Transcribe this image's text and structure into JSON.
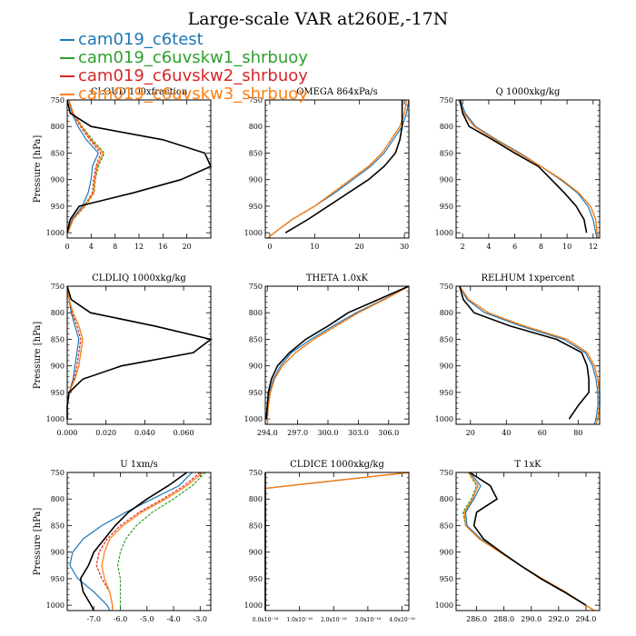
{
  "title": "Large-scale VAR at260E,-17N",
  "legend": [
    {
      "label": "cam019_c6test",
      "color": "#1f77b4"
    },
    {
      "label": "cam019_c6uvskw1_shrbuoy",
      "color": "#2ca02c"
    },
    {
      "label": "cam019_c6uvskw2_shrbuoy",
      "color": "#d62728"
    },
    {
      "label": "cam019_c6uvskw3_shrbuoy",
      "color": "#ff7f0e"
    }
  ],
  "colors": {
    "c6test": "#1f77b4",
    "skw1": "#2ca02c",
    "skw2": "#d62728",
    "skw3": "#ff7f0e",
    "reference": "#000000"
  },
  "chart_data": [
    {
      "type": "line",
      "title": "CLOUD 100xfraction",
      "ylabel": "Pressure [hPa]",
      "ylim": [
        1010,
        750
      ],
      "xlim": [
        0,
        24
      ],
      "xticks": [
        "0",
        "4",
        "8",
        "12",
        "16",
        "20"
      ],
      "xtick_values": [
        0,
        4,
        8,
        12,
        16,
        20
      ],
      "yticks": [
        750,
        800,
        850,
        900,
        950,
        1000
      ],
      "y": [
        750,
        775,
        800,
        825,
        850,
        875,
        900,
        925,
        950,
        975,
        1000
      ],
      "series": [
        {
          "color": "#1f77b4",
          "values": [
            0.3,
            0.8,
            1.8,
            3.2,
            5.2,
            4.2,
            4.0,
            3.5,
            2.5,
            0.8,
            0.1
          ]
        },
        {
          "color": "#2ca02c",
          "values": [
            0.3,
            1.0,
            2.5,
            4.2,
            6.2,
            5.2,
            4.7,
            4.5,
            3.0,
            1.0,
            0.1
          ]
        },
        {
          "color": "#d62728",
          "values": [
            0.3,
            0.9,
            2.2,
            3.8,
            5.6,
            4.8,
            4.4,
            4.2,
            2.8,
            0.9,
            0.1
          ]
        },
        {
          "color": "#ff7f0e",
          "values": [
            0.3,
            1.0,
            2.4,
            4.0,
            6.0,
            5.0,
            4.6,
            4.4,
            2.9,
            1.0,
            0.1
          ]
        },
        {
          "color": "#000000",
          "values": [
            0,
            0.5,
            4.0,
            16.0,
            23.0,
            24.0,
            19.0,
            11.0,
            2.0,
            0.5,
            0
          ]
        }
      ]
    },
    {
      "type": "line",
      "title": "OMEGA 864xPa/s",
      "ylabel": "",
      "ylim": [
        1010,
        750
      ],
      "xlim": [
        -1,
        31
      ],
      "xticks": [
        "0",
        "10",
        "20",
        "30"
      ],
      "xtick_values": [
        0,
        10,
        20,
        30
      ],
      "yticks": [
        750,
        800,
        850,
        900,
        950,
        1000
      ],
      "y": [
        750,
        775,
        800,
        825,
        850,
        875,
        900,
        925,
        950,
        975,
        1000,
        1010
      ],
      "series": [
        {
          "color": "#1f77b4",
          "values": [
            31,
            30.5,
            29.5,
            27.5,
            25.5,
            22.5,
            18.5,
            14.5,
            10,
            5,
            1,
            -0.5
          ]
        },
        {
          "color": "#2ca02c",
          "values": [
            30.5,
            30,
            29,
            27,
            25,
            22,
            18,
            14,
            10,
            5,
            1,
            -0.5
          ]
        },
        {
          "color": "#d62728",
          "values": [
            30.5,
            30,
            29,
            27,
            25,
            22,
            18,
            14,
            10,
            5,
            1,
            -0.5
          ]
        },
        {
          "color": "#ff7f0e",
          "values": [
            30.5,
            30,
            29,
            27,
            25,
            22,
            18,
            14,
            10,
            5,
            1,
            -0.5
          ]
        },
        {
          "color": "#000000",
          "values": [
            29.5,
            29.5,
            29.5,
            29,
            28,
            25.5,
            22,
            17.5,
            13,
            8.5,
            3.5
          ]
        }
      ]
    },
    {
      "type": "line",
      "title": "Q 1000xkg/kg",
      "ylabel": "",
      "ylim": [
        1010,
        750
      ],
      "xlim": [
        1.5,
        12.5
      ],
      "xticks": [
        "2",
        "4",
        "6",
        "8",
        "10",
        "12"
      ],
      "xtick_values": [
        2,
        4,
        6,
        8,
        10,
        12
      ],
      "yticks": [
        750,
        800,
        850,
        900,
        950,
        1000
      ],
      "y": [
        750,
        775,
        800,
        825,
        850,
        875,
        900,
        925,
        950,
        975,
        1000,
        1010
      ],
      "series": [
        {
          "color": "#1f77b4",
          "values": [
            1.8,
            2.2,
            3.0,
            4.6,
            6.4,
            8.0,
            9.5,
            10.8,
            11.6,
            12.0,
            12.2,
            12.3
          ]
        },
        {
          "color": "#2ca02c",
          "values": [
            1.7,
            2.1,
            2.9,
            4.5,
            6.3,
            8.0,
            9.6,
            10.9,
            11.8,
            12.2,
            12.3,
            12.4
          ]
        },
        {
          "color": "#d62728",
          "values": [
            1.7,
            2.1,
            2.9,
            4.5,
            6.3,
            8.0,
            9.6,
            10.9,
            11.8,
            12.2,
            12.3,
            12.4
          ]
        },
        {
          "color": "#ff7f0e",
          "values": [
            1.7,
            2.1,
            2.9,
            4.5,
            6.3,
            8.0,
            9.6,
            10.9,
            11.8,
            12.2,
            12.3,
            12.4
          ]
        },
        {
          "color": "#000000",
          "values": [
            1.8,
            2.0,
            2.5,
            4.3,
            6.0,
            7.8,
            8.8,
            9.8,
            10.7,
            11.3,
            11.5
          ]
        }
      ]
    },
    {
      "type": "line",
      "title": "CLDLIQ 1000xkg/kg",
      "ylabel": "Pressure [hPa]",
      "ylim": [
        1010,
        750
      ],
      "xlim": [
        0,
        0.074
      ],
      "xticks": [
        "0.000",
        "0.020",
        "0.040",
        "0.060"
      ],
      "xtick_values": [
        0,
        0.02,
        0.04,
        0.06
      ],
      "yticks": [
        750,
        800,
        850,
        900,
        950,
        1000
      ],
      "y": [
        750,
        775,
        800,
        825,
        850,
        875,
        900,
        925,
        950,
        975,
        1000
      ],
      "series": [
        {
          "color": "#1f77b4",
          "values": [
            0,
            0.001,
            0.002,
            0.004,
            0.006,
            0.005,
            0.004,
            0.003,
            0.001,
            0,
            0
          ]
        },
        {
          "color": "#2ca02c",
          "values": [
            0,
            0.001,
            0.003,
            0.006,
            0.008,
            0.007,
            0.006,
            0.004,
            0.001,
            0,
            0
          ]
        },
        {
          "color": "#d62728",
          "values": [
            0,
            0.001,
            0.0025,
            0.005,
            0.007,
            0.006,
            0.005,
            0.0035,
            0.001,
            0,
            0
          ]
        },
        {
          "color": "#ff7f0e",
          "values": [
            0,
            0.001,
            0.003,
            0.006,
            0.008,
            0.007,
            0.006,
            0.004,
            0.001,
            0,
            0
          ]
        },
        {
          "color": "#000000",
          "values": [
            0,
            0.002,
            0.012,
            0.045,
            0.074,
            0.065,
            0.028,
            0.008,
            0.001,
            0,
            0
          ]
        }
      ]
    },
    {
      "type": "line",
      "title": "THETA 1.0xK",
      "ylabel": "",
      "ylim": [
        1010,
        750
      ],
      "xlim": [
        293.8,
        308
      ],
      "xticks": [
        "294.0",
        "297.0",
        "300.0",
        "303.0",
        "306.0"
      ],
      "xtick_values": [
        294,
        297,
        300,
        303,
        306
      ],
      "yticks": [
        750,
        800,
        850,
        900,
        950,
        1000
      ],
      "y": [
        750,
        775,
        800,
        825,
        850,
        875,
        900,
        925,
        950,
        975,
        1000,
        1010
      ],
      "series": [
        {
          "color": "#1f77b4",
          "values": [
            308.0,
            305.5,
            302.8,
            300.5,
            298.3,
            296.4,
            295.3,
            294.6,
            294.2,
            294.1,
            294.0,
            294.0
          ]
        },
        {
          "color": "#2ca02c",
          "values": [
            308.0,
            305.6,
            303.0,
            300.8,
            298.6,
            296.8,
            295.5,
            294.7,
            294.3,
            294.1,
            294.0,
            294.0
          ]
        },
        {
          "color": "#d62728",
          "values": [
            308.0,
            305.6,
            303.0,
            300.8,
            298.6,
            296.8,
            295.5,
            294.7,
            294.3,
            294.1,
            294.0,
            294.0
          ]
        },
        {
          "color": "#ff7f0e",
          "values": [
            308.0,
            305.6,
            303.0,
            300.8,
            298.6,
            296.8,
            295.5,
            294.7,
            294.3,
            294.1,
            294.0,
            294.0
          ]
        },
        {
          "color": "#000000",
          "values": [
            308.0,
            305.0,
            302.0,
            300.0,
            297.8,
            296.2,
            295.0,
            294.4,
            294.1,
            294.0,
            293.9
          ]
        }
      ]
    },
    {
      "type": "line",
      "title": "RELHUM 1xpercent",
      "ylabel": "",
      "ylim": [
        1010,
        750
      ],
      "xlim": [
        12,
        92
      ],
      "xticks": [
        "20",
        "40",
        "60",
        "80"
      ],
      "xtick_values": [
        20,
        40,
        60,
        80
      ],
      "yticks": [
        750,
        800,
        850,
        900,
        950,
        1000
      ],
      "y": [
        750,
        775,
        800,
        825,
        850,
        875,
        900,
        925,
        950,
        975,
        1000,
        1010
      ],
      "series": [
        {
          "color": "#1f77b4",
          "values": [
            14,
            18,
            28,
            48,
            72,
            84,
            88,
            90,
            91,
            91,
            90,
            89
          ]
        },
        {
          "color": "#2ca02c",
          "values": [
            14,
            19,
            30,
            50,
            74,
            85,
            89,
            91,
            92,
            92,
            91,
            90
          ]
        },
        {
          "color": "#d62728",
          "values": [
            14,
            19,
            30,
            50,
            74,
            85,
            89,
            91,
            92,
            92,
            91,
            90
          ]
        },
        {
          "color": "#ff7f0e",
          "values": [
            14,
            19,
            30,
            50,
            74,
            85,
            89,
            91,
            92,
            92,
            91,
            90
          ]
        },
        {
          "color": "#000000",
          "values": [
            14,
            16,
            22,
            42,
            68,
            82,
            85,
            86,
            86,
            80,
            75
          ]
        }
      ]
    },
    {
      "type": "line",
      "title": "U 1xm/s",
      "ylabel": "Pressure [hPa]",
      "ylim": [
        1010,
        750
      ],
      "xlim": [
        -8,
        -2.6
      ],
      "xticks": [
        "-7.0",
        "-6.0",
        "-5.0",
        "-4.0",
        "-3.0"
      ],
      "xtick_values": [
        -7,
        -6,
        -5,
        -4,
        -3
      ],
      "yticks": [
        750,
        800,
        850,
        900,
        950,
        1000
      ],
      "y": [
        750,
        775,
        800,
        825,
        850,
        875,
        900,
        925,
        950,
        975,
        1000,
        1010
      ],
      "series": [
        {
          "color": "#1f77b4",
          "values": [
            -3.3,
            -3.8,
            -4.8,
            -5.8,
            -6.7,
            -7.4,
            -7.8,
            -7.9,
            -7.6,
            -7.0,
            -6.5,
            -6.4
          ]
        },
        {
          "color": "#2ca02c",
          "values": [
            -2.8,
            -3.3,
            -4.0,
            -4.8,
            -5.4,
            -5.8,
            -6.0,
            -6.1,
            -6.0,
            -6.0,
            -6.0,
            -6.0
          ]
        },
        {
          "color": "#d62728",
          "values": [
            -3.0,
            -3.6,
            -4.4,
            -5.3,
            -6.0,
            -6.5,
            -6.8,
            -6.9,
            -6.7,
            -6.4,
            -6.3,
            -6.3
          ]
        },
        {
          "color": "#ff7f0e",
          "values": [
            -2.9,
            -3.5,
            -4.3,
            -5.2,
            -5.9,
            -6.4,
            -6.6,
            -6.7,
            -6.6,
            -6.4,
            -6.3,
            -6.3
          ]
        },
        {
          "color": "#000000",
          "values": [
            -3.5,
            -4.2,
            -5.0,
            -5.7,
            -6.2,
            -6.6,
            -7.0,
            -7.2,
            -7.5,
            -7.4,
            -7.1,
            -7.0
          ]
        }
      ]
    },
    {
      "type": "line",
      "title": "CLDICE 1000xkg/kg",
      "ylabel": "",
      "ylim": [
        1010,
        750
      ],
      "xlim": [
        0,
        4.2
      ],
      "xticks": [
        "0.0x10⁻¹⁶",
        "1.0x10⁻¹⁶",
        "2.0x10⁻¹⁶",
        "3.0x10⁻¹⁶",
        "4.0x10⁻¹⁶"
      ],
      "xtick_values": [
        0,
        1,
        2,
        3,
        4
      ],
      "yticks": [
        750,
        800,
        850,
        900,
        950,
        1000
      ],
      "y": [
        750,
        780,
        1010
      ],
      "series": [
        {
          "color": "#1f77b4",
          "values": [
            4.2,
            0,
            0
          ]
        },
        {
          "color": "#2ca02c",
          "values": [
            4.2,
            0,
            0
          ]
        },
        {
          "color": "#d62728",
          "values": [
            4.2,
            0,
            0
          ]
        },
        {
          "color": "#ff7f0e",
          "values": [
            4.2,
            0,
            0
          ]
        },
        {
          "color": "#000000",
          "values": [
            0,
            0,
            0
          ]
        }
      ]
    },
    {
      "type": "line",
      "title": "T 1xK",
      "ylabel": "",
      "ylim": [
        1010,
        750
      ],
      "xlim": [
        284.5,
        295
      ],
      "xticks": [
        "286.0",
        "288.0",
        "290.0",
        "292.0",
        "294.0"
      ],
      "xtick_values": [
        286,
        288,
        290,
        292,
        294
      ],
      "yticks": [
        750,
        800,
        850,
        900,
        950,
        1000
      ],
      "y": [
        750,
        775,
        800,
        825,
        850,
        875,
        900,
        925,
        950,
        975,
        1000,
        1010
      ],
      "series": [
        {
          "color": "#1f77b4",
          "values": [
            285.5,
            286.3,
            285.8,
            285.2,
            285.3,
            286.3,
            287.8,
            289.2,
            290.8,
            292.5,
            294.0,
            294.6
          ]
        },
        {
          "color": "#2ca02c",
          "values": [
            285.4,
            286.0,
            285.6,
            285.0,
            285.2,
            286.2,
            287.7,
            289.2,
            290.8,
            292.5,
            294.0,
            294.6
          ]
        },
        {
          "color": "#d62728",
          "values": [
            285.4,
            286.1,
            285.7,
            285.1,
            285.2,
            286.2,
            287.7,
            289.2,
            290.8,
            292.5,
            294.0,
            294.6
          ]
        },
        {
          "color": "#ff7f0e",
          "values": [
            285.4,
            286.1,
            285.7,
            285.1,
            285.2,
            286.2,
            287.7,
            289.2,
            290.8,
            292.5,
            294.0,
            294.6
          ]
        },
        {
          "color": "#000000",
          "values": [
            285.5,
            287.0,
            287.5,
            286.0,
            285.8,
            286.5,
            287.8,
            289.2,
            290.7,
            292.4,
            294.0
          ]
        }
      ]
    }
  ]
}
